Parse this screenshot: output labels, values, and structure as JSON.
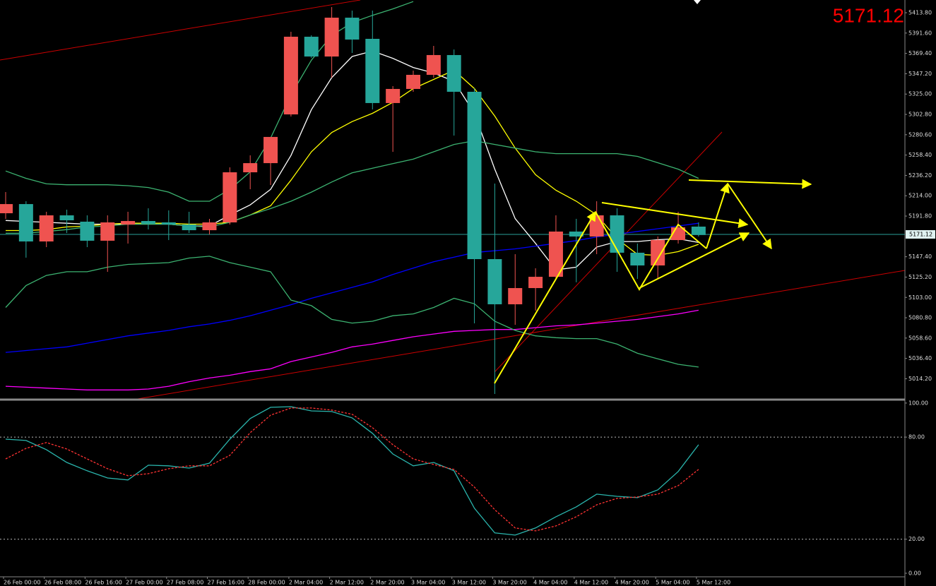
{
  "chart_data": [
    {
      "type": "candlestick",
      "last_price": 5171.12,
      "up_color": "#ef5350",
      "down_color": "#26a69a",
      "categories": [
        "26 Feb 00:00",
        null,
        "26 Feb 08:00",
        null,
        "26 Feb 16:00",
        null,
        "27 Feb 00:00",
        null,
        "27 Feb 08:00",
        null,
        "27 Feb 16:00",
        null,
        "28 Feb 00:00",
        null,
        "2 Mar 04:00",
        null,
        "2 Mar 12:00",
        null,
        "2 Mar 20:00",
        null,
        "3 Mar 04:00",
        null,
        "3 Mar 12:00",
        null,
        "3 Mar 20:00",
        null,
        "4 Mar 04:00",
        null,
        "4 Mar 12:00",
        null,
        "4 Mar 20:00",
        null,
        "5 Mar 04:00",
        null,
        "5 Mar 12:00"
      ],
      "open": [
        5194.9,
        5204.9,
        5164.1,
        5192.6,
        5185.7,
        5164.9,
        5182.6,
        5186.4,
        5184.9,
        5182.6,
        5176.4,
        5184.9,
        5239.6,
        5249.6,
        5302.8,
        5387.6,
        5366.0,
        5408.4,
        5385.3,
        5315.2,
        5330.6,
        5346.0,
        5367.6,
        5327.5,
        5144.8,
        5095.5,
        5113.2,
        5125.5,
        5174.9,
        5169.5,
        5192.6,
        5151.8,
        5137.9,
        5165.6,
        5180.3
      ],
      "high": [
        5218.0,
        5208.0,
        5196.5,
        5198.8,
        5192.6,
        5192.6,
        5196.5,
        5200.3,
        5198.0,
        5196.5,
        5188.8,
        5245.0,
        5258.1,
        5278.2,
        5393.0,
        5389.2,
        5420.0,
        5416.1,
        5416.1,
        5333.7,
        5350.6,
        5377.6,
        5373.7,
        5331.3,
        5227.3,
        5150.2,
        5134.8,
        5192.6,
        5188.8,
        5208.0,
        5200.3,
        5161.8,
        5169.5,
        5196.5,
        5184.9
      ],
      "low": [
        5188.8,
        5146.4,
        5157.9,
        5173.3,
        5157.9,
        5130.9,
        5161.8,
        5177.2,
        5165.6,
        5173.3,
        5171.8,
        5182.6,
        5221.1,
        5225.7,
        5300.5,
        5364.5,
        5342.9,
        5369.9,
        5308.2,
        5261.9,
        5327.5,
        5342.9,
        5279.7,
        5074.7,
        4997.6,
        5073.1,
        5088.6,
        5123.2,
        5119.5,
        5150.2,
        5130.9,
        5123.2,
        5123.2,
        5161.8,
        5169.5
      ],
      "close": [
        5204.9,
        5164.1,
        5192.6,
        5187.2,
        5164.9,
        5184.9,
        5186.4,
        5183.4,
        5182.6,
        5176.4,
        5184.9,
        5239.6,
        5249.6,
        5278.2,
        5387.6,
        5366.0,
        5408.4,
        5384.5,
        5315.2,
        5330.6,
        5346.0,
        5367.6,
        5327.5,
        5144.8,
        5095.5,
        5113.2,
        5125.5,
        5174.9,
        5169.5,
        5192.6,
        5151.8,
        5137.9,
        5165.6,
        5179.5,
        5171.12
      ],
      "series": [
        {
          "color": "#ffffff",
          "values": [
            5187,
            5186,
            5185,
            5184,
            5183,
            5183,
            5183,
            5183,
            5183,
            5181,
            5181,
            5193,
            5204,
            5221,
            5258,
            5308,
            5343,
            5366,
            5372,
            5364,
            5354,
            5348,
            5339,
            5304,
            5243,
            5189,
            5162,
            5133,
            5136,
            5158,
            5164,
            5164,
            5166,
            5167,
            5163
          ]
        },
        {
          "color": "#ffff00",
          "values": [
            5176,
            5176,
            5177,
            5180,
            5181,
            5183,
            5184,
            5184,
            5184,
            5183,
            5183,
            5185,
            5193,
            5203,
            5231,
            5262,
            5283,
            5295,
            5304,
            5316,
            5331,
            5341,
            5351,
            5331,
            5301,
            5266,
            5237,
            5220,
            5208,
            5193,
            5167,
            5150,
            5149,
            5153,
            5161
          ]
        },
        {
          "color": "#0000ff",
          "values": [
            5043,
            5045,
            5047,
            5049,
            5053,
            5057,
            5061,
            5064,
            5067,
            5071,
            5074,
            5078,
            5083,
            5089,
            5095,
            5102,
            5108,
            5114,
            5120,
            5128,
            5135,
            5142,
            5147,
            5152,
            5154,
            5156,
            5159,
            5162,
            5165,
            5169,
            5172,
            5175,
            5178,
            5181,
            5184
          ]
        },
        {
          "color": "#ff00ff",
          "values": [
            5006,
            5005,
            5004,
            5003,
            5002,
            5002,
            5002,
            5003,
            5006,
            5011,
            5015,
            5018,
            5022,
            5025,
            5033,
            5038,
            5043,
            5049,
            5052,
            5056,
            5060,
            5063,
            5066,
            5067,
            5068,
            5068,
            5070,
            5072,
            5073,
            5075,
            5077,
            5079,
            5082,
            5085,
            5089
          ]
        },
        {
          "color": "#3cb371",
          "values": [
            5241,
            5233,
            5227,
            5226,
            5226,
            5226,
            5225,
            5223,
            5218,
            5208,
            5208,
            5221,
            5240,
            5277,
            5324,
            5362,
            5389,
            5403,
            5411,
            5418,
            5426,
            null,
            null,
            null,
            null,
            null,
            null,
            null,
            null,
            null,
            null,
            null,
            null,
            null,
            null
          ]
        },
        {
          "color": "#3cb371",
          "values": [
            5173,
            5173,
            5175,
            5177,
            5180,
            5181,
            5183,
            5183,
            5183,
            5181,
            5180,
            5185,
            5193,
            5200,
            5208,
            5218,
            5229,
            5239,
            5244,
            5249,
            5254,
            5262,
            5270,
            5274,
            5270,
            5266,
            5262,
            5260,
            5260,
            5260,
            5260,
            5257,
            5250,
            5243,
            5233
          ]
        },
        {
          "color": "#3cb371",
          "values": [
            5092,
            5116,
            5127,
            5131,
            5131,
            5136,
            5139,
            5140,
            5141,
            5146,
            5148,
            5141,
            5136,
            5131,
            5100,
            5094,
            5079,
            5075,
            5077,
            5083,
            5085,
            5092,
            5102,
            5096,
            5077,
            5067,
            5061,
            5059,
            5058,
            5058,
            5052,
            5042,
            5036,
            5030,
            5027
          ]
        }
      ],
      "ylim": [
        4992.2,
        5427.7
      ],
      "yticks": [
        {
          "value": 5413.8,
          "label": "5413.80"
        },
        {
          "value": 5391.6,
          "label": "5391.60"
        },
        {
          "value": 5369.4,
          "label": "5369.40"
        },
        {
          "value": 5347.2,
          "label": "5347.20"
        },
        {
          "value": 5325,
          "label": "5325.00"
        },
        {
          "value": 5302.8,
          "label": "5302.80"
        },
        {
          "value": 5280.6,
          "label": "5280.60"
        },
        {
          "value": 5258.4,
          "label": "5258.40"
        },
        {
          "value": 5236.2,
          "label": "5236.20"
        },
        {
          "value": 5214,
          "label": "5214.00"
        },
        {
          "value": 5191.8,
          "label": "5191.80"
        },
        {
          "value": 5147.4,
          "label": "5147.40"
        },
        {
          "value": 5125.2,
          "label": "5125.20"
        },
        {
          "value": 5103,
          "label": "5103.00"
        },
        {
          "value": 5080.8,
          "label": "5080.80"
        },
        {
          "value": 5058.6,
          "label": "5058.60"
        },
        {
          "value": 5036.4,
          "label": "5036.40"
        },
        {
          "value": 5014.2,
          "label": "5014.20"
        }
      ]
    },
    {
      "type": "line",
      "series": [
        {
          "color": "#2ab5ad",
          "values": [
            78.8,
            78.0,
            72.6,
            65.1,
            60.2,
            56.0,
            54.8,
            63.5,
            63.1,
            61.8,
            64.7,
            78.8,
            90.9,
            97.5,
            97.9,
            95.4,
            95.0,
            91.3,
            82.2,
            70.1,
            63.1,
            65.1,
            60.2,
            38.2,
            23.7,
            22.4,
            26.6,
            33.2,
            39.0,
            46.5,
            45.2,
            44.4,
            49.0,
            59.8,
            75.5
          ]
        },
        {
          "color": "#ff3333",
          "dashed": true,
          "values": [
            67.2,
            73.4,
            76.8,
            73.0,
            67.2,
            61.4,
            57.3,
            58.5,
            61.4,
            63.1,
            63.1,
            69.3,
            82.6,
            92.9,
            97.1,
            97.1,
            95.9,
            93.4,
            85.5,
            75.5,
            67.2,
            63.9,
            61.0,
            50.6,
            37.3,
            26.6,
            24.9,
            27.8,
            33.2,
            40.2,
            44.0,
            44.8,
            46.5,
            51.5,
            61.0
          ]
        }
      ],
      "levels": [
        80,
        20
      ],
      "ylim": [
        -2.1,
        101.2
      ],
      "yticks": [
        {
          "value": 100,
          "label": "100.00"
        },
        {
          "value": 80,
          "label": "80.00"
        },
        {
          "value": 20,
          "label": "20.00"
        },
        {
          "value": 0,
          "label": "0.00"
        }
      ]
    }
  ]
}
